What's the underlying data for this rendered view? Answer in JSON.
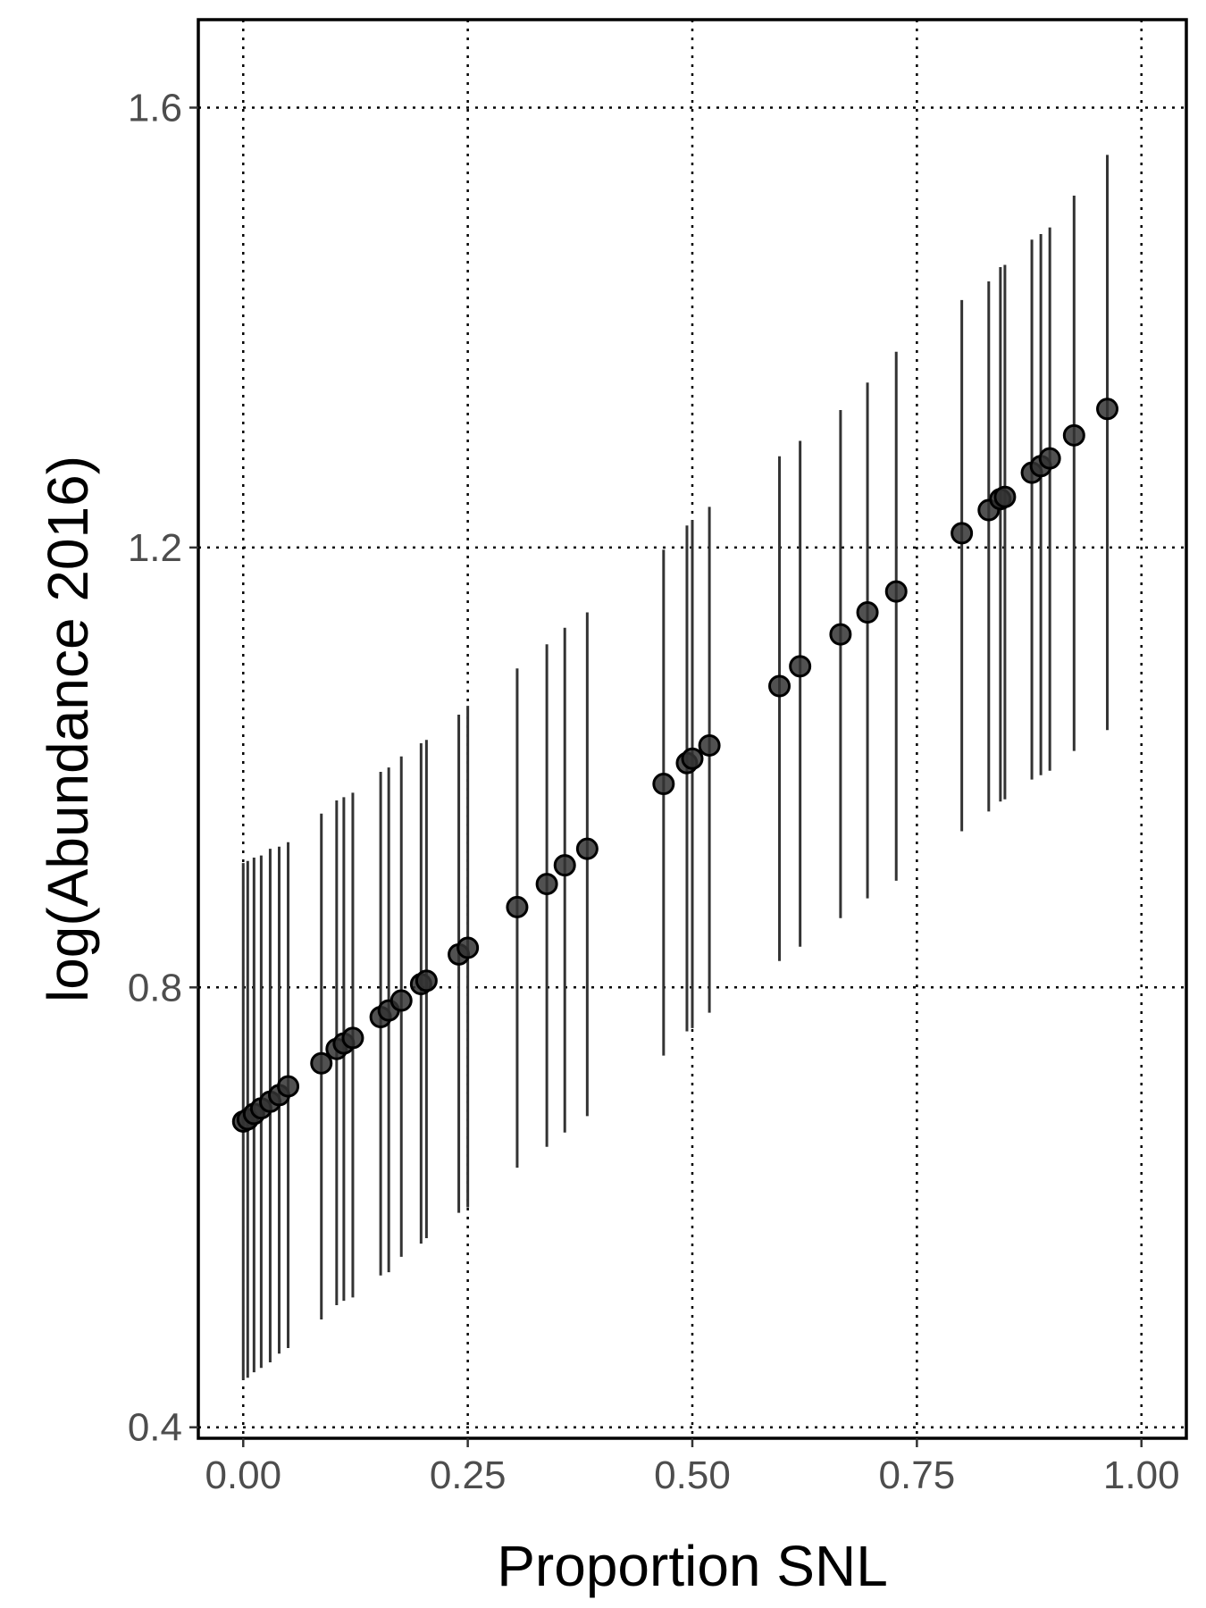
{
  "chart_data": {
    "type": "scatter",
    "xlabel": "Proportion SNL",
    "ylabel": "log(Abundance 2016)",
    "xlim": [
      -0.05,
      1.05
    ],
    "ylim": [
      0.39,
      1.68
    ],
    "x_ticks": [
      0.0,
      0.25,
      0.5,
      0.75,
      1.0
    ],
    "x_tick_labels": [
      "0.00",
      "0.25",
      "0.50",
      "0.75",
      "1.00"
    ],
    "y_ticks": [
      0.4,
      0.8,
      1.2,
      1.6
    ],
    "y_tick_labels": [
      "0.4",
      "0.8",
      "1.2",
      "1.6"
    ],
    "grid": true,
    "points": [
      {
        "x": 0.0,
        "y": 0.678,
        "lo": 0.443,
        "hi": 0.913
      },
      {
        "x": 0.005,
        "y": 0.68,
        "lo": 0.445,
        "hi": 0.915
      },
      {
        "x": 0.012,
        "y": 0.685,
        "lo": 0.45,
        "hi": 0.918
      },
      {
        "x": 0.02,
        "y": 0.69,
        "lo": 0.454,
        "hi": 0.92
      },
      {
        "x": 0.03,
        "y": 0.696,
        "lo": 0.459,
        "hi": 0.926
      },
      {
        "x": 0.04,
        "y": 0.702,
        "lo": 0.467,
        "hi": 0.928
      },
      {
        "x": 0.05,
        "y": 0.71,
        "lo": 0.472,
        "hi": 0.932
      },
      {
        "x": 0.087,
        "y": 0.731,
        "lo": 0.498,
        "hi": 0.958
      },
      {
        "x": 0.104,
        "y": 0.744,
        "lo": 0.511,
        "hi": 0.97
      },
      {
        "x": 0.112,
        "y": 0.749,
        "lo": 0.515,
        "hi": 0.973
      },
      {
        "x": 0.122,
        "y": 0.754,
        "lo": 0.518,
        "hi": 0.977
      },
      {
        "x": 0.153,
        "y": 0.773,
        "lo": 0.538,
        "hi": 0.996
      },
      {
        "x": 0.162,
        "y": 0.779,
        "lo": 0.541,
        "hi": 1.0
      },
      {
        "x": 0.176,
        "y": 0.788,
        "lo": 0.555,
        "hi": 1.01
      },
      {
        "x": 0.198,
        "y": 0.803,
        "lo": 0.567,
        "hi": 1.022
      },
      {
        "x": 0.204,
        "y": 0.806,
        "lo": 0.572,
        "hi": 1.025
      },
      {
        "x": 0.24,
        "y": 0.83,
        "lo": 0.595,
        "hi": 1.048
      },
      {
        "x": 0.25,
        "y": 0.836,
        "lo": 0.6,
        "hi": 1.056
      },
      {
        "x": 0.305,
        "y": 0.873,
        "lo": 0.636,
        "hi": 1.09
      },
      {
        "x": 0.338,
        "y": 0.894,
        "lo": 0.655,
        "hi": 1.112
      },
      {
        "x": 0.358,
        "y": 0.911,
        "lo": 0.668,
        "hi": 1.127
      },
      {
        "x": 0.383,
        "y": 0.926,
        "lo": 0.683,
        "hi": 1.141
      },
      {
        "x": 0.468,
        "y": 0.985,
        "lo": 0.738,
        "hi": 1.198
      },
      {
        "x": 0.494,
        "y": 1.004,
        "lo": 0.76,
        "hi": 1.22
      },
      {
        "x": 0.5,
        "y": 1.008,
        "lo": 0.763,
        "hi": 1.225
      },
      {
        "x": 0.519,
        "y": 1.02,
        "lo": 0.777,
        "hi": 1.237
      },
      {
        "x": 0.597,
        "y": 1.074,
        "lo": 0.824,
        "hi": 1.283
      },
      {
        "x": 0.62,
        "y": 1.092,
        "lo": 0.837,
        "hi": 1.297
      },
      {
        "x": 0.665,
        "y": 1.121,
        "lo": 0.863,
        "hi": 1.325
      },
      {
        "x": 0.695,
        "y": 1.141,
        "lo": 0.881,
        "hi": 1.35
      },
      {
        "x": 0.727,
        "y": 1.16,
        "lo": 0.897,
        "hi": 1.378
      },
      {
        "x": 0.8,
        "y": 1.213,
        "lo": 0.942,
        "hi": 1.425
      },
      {
        "x": 0.83,
        "y": 1.234,
        "lo": 0.96,
        "hi": 1.442
      },
      {
        "x": 0.843,
        "y": 1.244,
        "lo": 0.969,
        "hi": 1.455
      },
      {
        "x": 0.848,
        "y": 1.246,
        "lo": 0.971,
        "hi": 1.457
      },
      {
        "x": 0.878,
        "y": 1.268,
        "lo": 0.989,
        "hi": 1.48
      },
      {
        "x": 0.888,
        "y": 1.274,
        "lo": 0.993,
        "hi": 1.485
      },
      {
        "x": 0.898,
        "y": 1.281,
        "lo": 0.997,
        "hi": 1.491
      },
      {
        "x": 0.925,
        "y": 1.302,
        "lo": 1.015,
        "hi": 1.52
      },
      {
        "x": 0.962,
        "y": 1.326,
        "lo": 1.034,
        "hi": 1.557
      }
    ]
  }
}
